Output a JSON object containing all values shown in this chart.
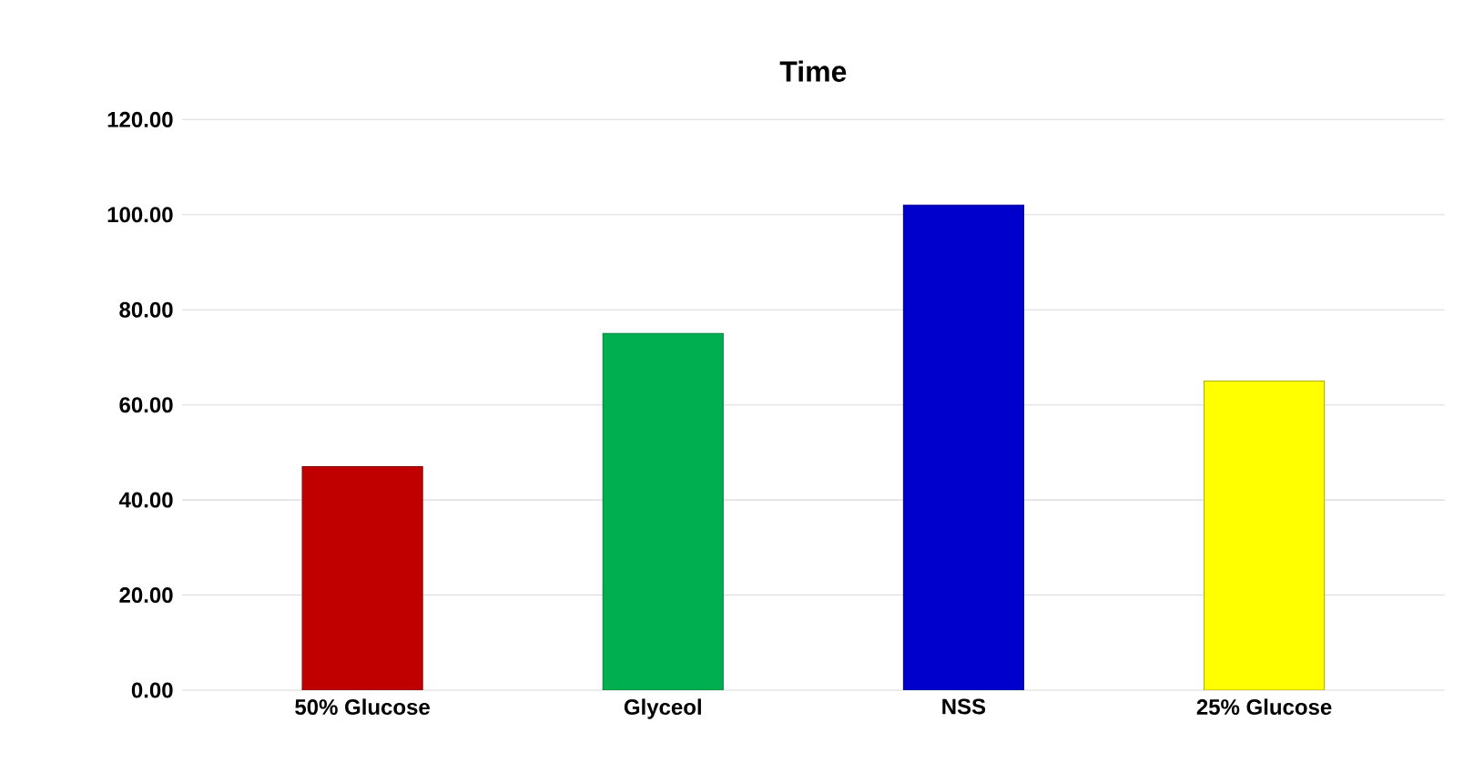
{
  "chart_data": {
    "type": "bar",
    "title": "Time",
    "categories": [
      "50% Glucose",
      "Glyceol",
      "NSS",
      "25% Glucose"
    ],
    "values": [
      47,
      75,
      102,
      65
    ],
    "colors": [
      "#c00000",
      "#00b050",
      "#0000cc",
      "#ffff00"
    ],
    "ylim": [
      0,
      120
    ],
    "yticks": [
      {
        "value": 0,
        "label": "0.00"
      },
      {
        "value": 20,
        "label": "20.00"
      },
      {
        "value": 40,
        "label": "40.00"
      },
      {
        "value": 60,
        "label": "60.00"
      },
      {
        "value": 80,
        "label": "80.00"
      },
      {
        "value": 100,
        "label": "100.00"
      },
      {
        "value": 120,
        "label": "120.00"
      }
    ],
    "grid": "y"
  }
}
